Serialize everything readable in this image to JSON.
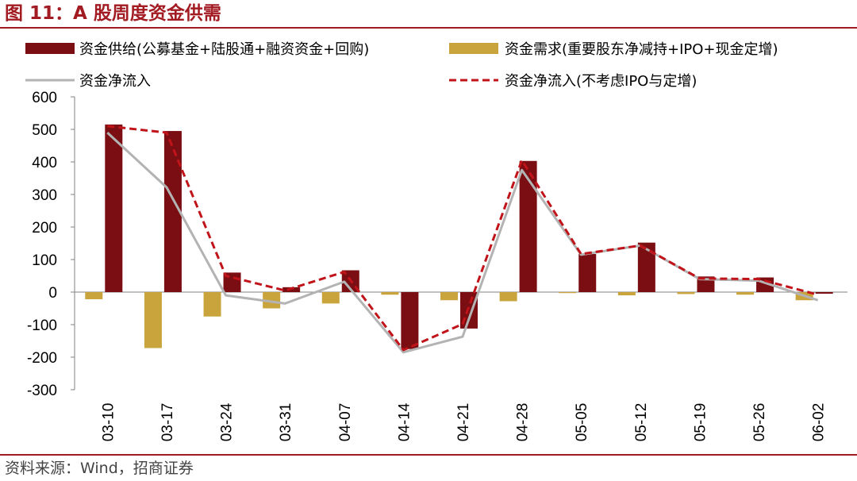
{
  "figure": {
    "title": "图 11：A 股周度资金供需",
    "source": "资料来源：Wind，招商证券"
  },
  "colors": {
    "supply": "#7b0e12",
    "demand": "#c9a43c",
    "net": "#b3b3b3",
    "net_ex": "#c0141a",
    "accent": "#a31b22"
  },
  "chart_data": {
    "type": "bar",
    "categories": [
      "03-10",
      "03-17",
      "03-24",
      "03-31",
      "04-07",
      "04-14",
      "04-21",
      "04-28",
      "05-05",
      "05-12",
      "05-19",
      "05-26",
      "06-02"
    ],
    "ylim": [
      -300,
      600
    ],
    "yticks": [
      "600",
      "500",
      "400",
      "300",
      "200",
      "100",
      "0",
      "-100",
      "-200",
      "-300"
    ],
    "grid": false,
    "legend_position": "top",
    "series": [
      {
        "name": "资金供给(公募基金+陆股通+融资资金+回购)",
        "kind": "bar",
        "values": [
          515,
          495,
          60,
          15,
          67,
          -175,
          -112,
          403,
          117,
          152,
          48,
          45,
          -5
        ]
      },
      {
        "name": "资金需求(重要股东净减持+IPO+现金定增)",
        "kind": "bar",
        "values": [
          -22,
          -172,
          -75,
          -50,
          -35,
          -8,
          -25,
          -28,
          -3,
          -10,
          -6,
          -8,
          -25
        ]
      },
      {
        "name": "资金净流入",
        "kind": "line",
        "values": [
          490,
          322,
          -10,
          -35,
          32,
          -185,
          -137,
          375,
          115,
          143,
          40,
          35,
          -25
        ]
      },
      {
        "name": "资金净流入(不考虑IPO与定增)",
        "kind": "dashed-line",
        "values": [
          510,
          490,
          50,
          5,
          62,
          -178,
          -98,
          405,
          117,
          143,
          42,
          40,
          -8
        ]
      }
    ]
  }
}
